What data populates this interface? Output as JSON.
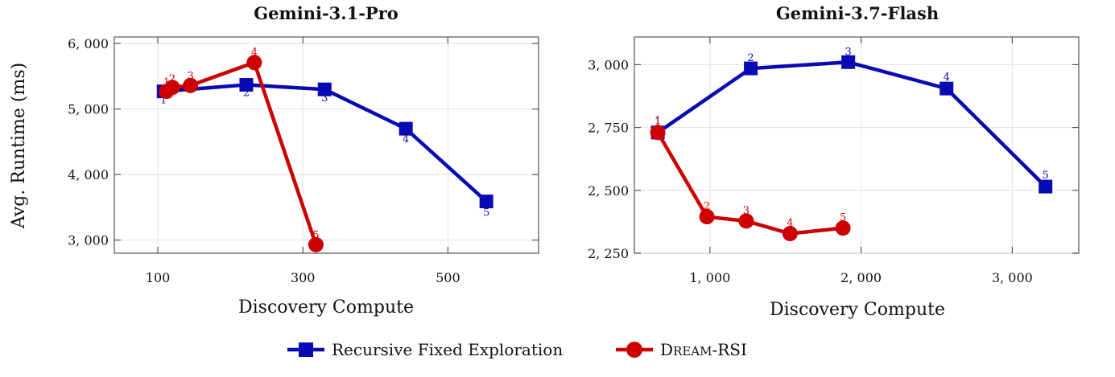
{
  "chart_data": [
    {
      "type": "line",
      "title": "Gemini-3.1-Pro",
      "xlabel": "Discovery Compute",
      "ylabel": "Avg. Runtime (ms)",
      "xlim": [
        40,
        625
      ],
      "ylim": [
        2800,
        6100
      ],
      "xticks": [
        100,
        300,
        500
      ],
      "xtick_labels": [
        "100",
        "300",
        "500"
      ],
      "yticks": [
        3000,
        4000,
        5000,
        6000
      ],
      "ytick_labels": [
        "3, 000",
        "4, 000",
        "5, 000",
        "6, 000"
      ],
      "grid": true,
      "series": [
        {
          "name": "Recursive Fixed Exploration",
          "color": "#0a0ab4",
          "marker": "square",
          "x": [
            108,
            222,
            330,
            442,
            553
          ],
          "y": [
            5270,
            5370,
            5300,
            4700,
            3590
          ],
          "labels": [
            "1",
            "2",
            "3",
            "4",
            "5"
          ]
        },
        {
          "name": "DREAM-RSI",
          "color": "#cc0000",
          "marker": "circle",
          "x": [
            112,
            120,
            145,
            233,
            318
          ],
          "y": [
            5270,
            5330,
            5360,
            5710,
            2930
          ],
          "labels": [
            "1",
            "2",
            "3",
            "4",
            "5"
          ]
        }
      ]
    },
    {
      "type": "line",
      "title": "Gemini-3.7-Flash",
      "xlabel": "Discovery Compute",
      "ylabel": "",
      "xlim": [
        500,
        3440
      ],
      "ylim": [
        2250,
        3110
      ],
      "xticks": [
        1000,
        2000,
        3000
      ],
      "xtick_labels": [
        "1, 000",
        "2, 000",
        "3, 000"
      ],
      "yticks": [
        2250,
        2500,
        2750,
        3000
      ],
      "ytick_labels": [
        "2, 250",
        "2, 500",
        "2, 750",
        "3, 000"
      ],
      "grid": true,
      "series": [
        {
          "name": "Recursive Fixed Exploration",
          "color": "#0a0ab4",
          "marker": "square",
          "x": [
            655,
            1270,
            1915,
            2565,
            3220
          ],
          "y": [
            2730,
            2985,
            3010,
            2905,
            2515
          ],
          "labels": [
            "1",
            "2",
            "3",
            "4",
            "5"
          ]
        },
        {
          "name": "DREAM-RSI",
          "color": "#cc0000",
          "marker": "circle",
          "x": [
            655,
            980,
            1240,
            1530,
            1880
          ],
          "y": [
            2730,
            2395,
            2378,
            2328,
            2350
          ],
          "labels": [
            "1",
            "2",
            "3",
            "4",
            "5"
          ]
        }
      ]
    }
  ],
  "legend": {
    "position": "bottom-center",
    "items": [
      {
        "label": "Recursive Fixed Exploration",
        "color": "#0a0ab4",
        "marker": "square"
      },
      {
        "label": "DREAM-RSI",
        "label_first": "D",
        "label_caps": "REAM",
        "label_rest": "-RSI",
        "color": "#cc0000",
        "marker": "circle"
      }
    ]
  }
}
